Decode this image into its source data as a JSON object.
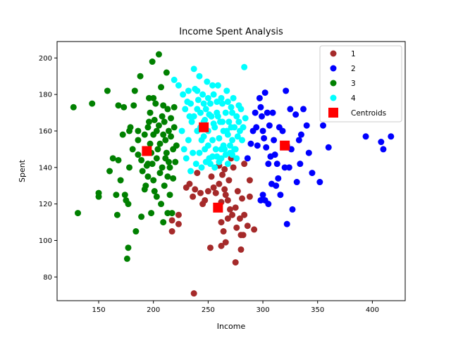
{
  "chart_data": {
    "type": "scatter",
    "title": "Income Spent Analysis",
    "xlabel": "Income",
    "ylabel": "Spent",
    "xlim": [
      112,
      430
    ],
    "ylim": [
      67,
      209
    ],
    "xticks": [
      150,
      200,
      250,
      300,
      350,
      400
    ],
    "yticks": [
      80,
      100,
      120,
      140,
      160,
      180,
      200
    ],
    "grid": false,
    "legend_position": "top-right",
    "series": [
      {
        "name": "1",
        "color": "#a52a2a",
        "points": [
          [
            237,
            71
          ],
          [
            252,
            96
          ],
          [
            262,
            97
          ],
          [
            266,
            99
          ],
          [
            275,
            88
          ],
          [
            280,
            95
          ],
          [
            217,
            111
          ],
          [
            217,
            105
          ],
          [
            223,
            114
          ],
          [
            223,
            109
          ],
          [
            230,
            129
          ],
          [
            233,
            131
          ],
          [
            236,
            124
          ],
          [
            238,
            128
          ],
          [
            240,
            137
          ],
          [
            243,
            126
          ],
          [
            245,
            120
          ],
          [
            247,
            122
          ],
          [
            250,
            127
          ],
          [
            253,
            135
          ],
          [
            255,
            129
          ],
          [
            257,
            126
          ],
          [
            260,
            131
          ],
          [
            262,
            121
          ],
          [
            263,
            136
          ],
          [
            265,
            128
          ],
          [
            266,
            125
          ],
          [
            268,
            122
          ],
          [
            269,
            133
          ],
          [
            270,
            117
          ],
          [
            271,
            145
          ],
          [
            273,
            140
          ],
          [
            275,
            118
          ],
          [
            277,
            127
          ],
          [
            279,
            112
          ],
          [
            281,
            123
          ],
          [
            283,
            114
          ],
          [
            286,
            108
          ],
          [
            288,
            124
          ],
          [
            288,
            133
          ],
          [
            292,
            106
          ],
          [
            262,
            110
          ],
          [
            264,
            105
          ],
          [
            268,
            112
          ],
          [
            272,
            114
          ],
          [
            276,
            107
          ],
          [
            280,
            103
          ],
          [
            282,
            103
          ],
          [
            283,
            142
          ],
          [
            260,
            141
          ],
          [
            265,
            139
          ]
        ]
      },
      {
        "name": "2",
        "color": "#0000ff",
        "points": [
          [
            286,
            145
          ],
          [
            289,
            153
          ],
          [
            291,
            160
          ],
          [
            293,
            170
          ],
          [
            294,
            162
          ],
          [
            295,
            152
          ],
          [
            297,
            178
          ],
          [
            298,
            173
          ],
          [
            299,
            168
          ],
          [
            300,
            160
          ],
          [
            301,
            156
          ],
          [
            302,
            181
          ],
          [
            303,
            151
          ],
          [
            304,
            170
          ],
          [
            305,
            142
          ],
          [
            306,
            163
          ],
          [
            307,
            146
          ],
          [
            308,
            131
          ],
          [
            309,
            170
          ],
          [
            310,
            155
          ],
          [
            311,
            147
          ],
          [
            312,
            130
          ],
          [
            313,
            142
          ],
          [
            314,
            134
          ],
          [
            315,
            162
          ],
          [
            316,
            125
          ],
          [
            318,
            160
          ],
          [
            320,
            140
          ],
          [
            321,
            182
          ],
          [
            322,
            109
          ],
          [
            324,
            140
          ],
          [
            325,
            172
          ],
          [
            326,
            150
          ],
          [
            327,
            117
          ],
          [
            330,
            169
          ],
          [
            331,
            132
          ],
          [
            333,
            155
          ],
          [
            334,
            142
          ],
          [
            335,
            158
          ],
          [
            337,
            172
          ],
          [
            340,
            163
          ],
          [
            342,
            148
          ],
          [
            345,
            137
          ],
          [
            352,
            132
          ],
          [
            355,
            163
          ],
          [
            360,
            151
          ],
          [
            394,
            157
          ],
          [
            408,
            154
          ],
          [
            410,
            150
          ],
          [
            417,
            157
          ],
          [
            298,
            122
          ],
          [
            302,
            122
          ],
          [
            305,
            120
          ],
          [
            300,
            125
          ],
          [
            322,
            152
          ]
        ]
      },
      {
        "name": "3",
        "color": "#008000",
        "points": [
          [
            127,
            173
          ],
          [
            131,
            115
          ],
          [
            144,
            175
          ],
          [
            150,
            126
          ],
          [
            150,
            124
          ],
          [
            158,
            182
          ],
          [
            160,
            138
          ],
          [
            163,
            145
          ],
          [
            166,
            125
          ],
          [
            167,
            114
          ],
          [
            168,
            174
          ],
          [
            168,
            144
          ],
          [
            170,
            133
          ],
          [
            172,
            158
          ],
          [
            173,
            173
          ],
          [
            174,
            125
          ],
          [
            175,
            122
          ],
          [
            176,
            90
          ],
          [
            177,
            96
          ],
          [
            177,
            120
          ],
          [
            178,
            140
          ],
          [
            178,
            160
          ],
          [
            179,
            162
          ],
          [
            181,
            150
          ],
          [
            182,
            174
          ],
          [
            183,
            182
          ],
          [
            184,
            105
          ],
          [
            186,
            147
          ],
          [
            186,
            155
          ],
          [
            188,
            190
          ],
          [
            189,
            113
          ],
          [
            189,
            144
          ],
          [
            190,
            138
          ],
          [
            192,
            128
          ],
          [
            193,
            130
          ],
          [
            194,
            141
          ],
          [
            195,
            135
          ],
          [
            195,
            162
          ],
          [
            196,
            178
          ],
          [
            197,
            153
          ],
          [
            197,
            170
          ],
          [
            198,
            115
          ],
          [
            198,
            148
          ],
          [
            199,
            198
          ],
          [
            199,
            142
          ],
          [
            200,
            158
          ],
          [
            200,
            178
          ],
          [
            201,
            127
          ],
          [
            201,
            166
          ],
          [
            202,
            175
          ],
          [
            203,
            160
          ],
          [
            203,
            145
          ],
          [
            205,
            163
          ],
          [
            205,
            202
          ],
          [
            206,
            137
          ],
          [
            206,
            153
          ],
          [
            207,
            120
          ],
          [
            207,
            184
          ],
          [
            208,
            168
          ],
          [
            208,
            140
          ],
          [
            209,
            174
          ],
          [
            210,
            130
          ],
          [
            210,
            165
          ],
          [
            211,
            155
          ],
          [
            212,
            148
          ],
          [
            212,
            192
          ],
          [
            213,
            115
          ],
          [
            213,
            172
          ],
          [
            214,
            160
          ],
          [
            214,
            143
          ],
          [
            215,
            125
          ],
          [
            216,
            167
          ],
          [
            216,
            157
          ],
          [
            217,
            115
          ],
          [
            218,
            134
          ],
          [
            218,
            150
          ],
          [
            219,
            173
          ],
          [
            219,
            162
          ],
          [
            220,
            143
          ],
          [
            221,
            152
          ],
          [
            196,
            165
          ],
          [
            192,
            158
          ],
          [
            186,
            160
          ],
          [
            204,
            150
          ],
          [
            209,
            158
          ],
          [
            213,
            135
          ],
          [
            200,
            133
          ],
          [
            203,
            124
          ],
          [
            211,
            145
          ],
          [
            215,
            140
          ],
          [
            209,
            110
          ],
          [
            195,
            142
          ]
        ]
      },
      {
        "name": "4",
        "color": "#00ffff",
        "points": [
          [
            219,
            188
          ],
          [
            223,
            185
          ],
          [
            227,
            180
          ],
          [
            229,
            172
          ],
          [
            231,
            176
          ],
          [
            233,
            168
          ],
          [
            235,
            165
          ],
          [
            237,
            194
          ],
          [
            238,
            183
          ],
          [
            240,
            160
          ],
          [
            241,
            177
          ],
          [
            243,
            170
          ],
          [
            244,
            155
          ],
          [
            245,
            180
          ],
          [
            246,
            165
          ],
          [
            247,
            150
          ],
          [
            248,
            172
          ],
          [
            249,
            187
          ],
          [
            250,
            160
          ],
          [
            251,
            145
          ],
          [
            252,
            175
          ],
          [
            253,
            168
          ],
          [
            254,
            155
          ],
          [
            255,
            180
          ],
          [
            256,
            162
          ],
          [
            257,
            150
          ],
          [
            258,
            170
          ],
          [
            259,
            185
          ],
          [
            260,
            156
          ],
          [
            261,
            165
          ],
          [
            262,
            145
          ],
          [
            263,
            175
          ],
          [
            264,
            160
          ],
          [
            265,
            150
          ],
          [
            266,
            170
          ],
          [
            267,
            182
          ],
          [
            268,
            158
          ],
          [
            269,
            165
          ],
          [
            270,
            148
          ],
          [
            271,
            173
          ],
          [
            272,
            155
          ],
          [
            273,
            178
          ],
          [
            274,
            162
          ],
          [
            275,
            150
          ],
          [
            276,
            168
          ],
          [
            277,
            157
          ],
          [
            278,
            165
          ],
          [
            279,
            160
          ],
          [
            280,
            172
          ],
          [
            281,
            155
          ],
          [
            282,
            162
          ],
          [
            283,
            195
          ],
          [
            284,
            167
          ],
          [
            226,
            160
          ],
          [
            228,
            150
          ],
          [
            230,
            145
          ],
          [
            232,
            155
          ],
          [
            234,
            138
          ],
          [
            236,
            148
          ],
          [
            239,
            142
          ],
          [
            242,
            148
          ],
          [
            244,
            140
          ],
          [
            246,
            157
          ],
          [
            248,
            143
          ],
          [
            250,
            152
          ],
          [
            252,
            142
          ],
          [
            254,
            146
          ],
          [
            256,
            140
          ],
          [
            258,
            146
          ],
          [
            260,
            143
          ],
          [
            262,
            150
          ],
          [
            264,
            152
          ],
          [
            266,
            147
          ],
          [
            268,
            142
          ],
          [
            270,
            152
          ],
          [
            272,
            147
          ],
          [
            274,
            150
          ],
          [
            276,
            145
          ],
          [
            240,
            182
          ],
          [
            242,
            190
          ],
          [
            246,
            175
          ],
          [
            250,
            178
          ],
          [
            254,
            185
          ],
          [
            258,
            176
          ],
          [
            262,
            178
          ],
          [
            268,
            176
          ],
          [
            272,
            170
          ],
          [
            278,
            174
          ],
          [
            232,
            182
          ],
          [
            234,
            175
          ],
          [
            237,
            168
          ],
          [
            240,
            172
          ],
          [
            243,
            162
          ],
          [
            247,
            166
          ],
          [
            251,
            169
          ],
          [
            255,
            164
          ],
          [
            259,
            168
          ],
          [
            263,
            165
          ],
          [
            267,
            160
          ],
          [
            271,
            162
          ]
        ]
      }
    ],
    "centroids": {
      "name": "Centroids",
      "color": "#ff0000",
      "marker": "square",
      "points": [
        [
          194,
          149
        ],
        [
          246,
          162
        ],
        [
          259,
          118
        ],
        [
          320,
          152
        ]
      ]
    }
  }
}
